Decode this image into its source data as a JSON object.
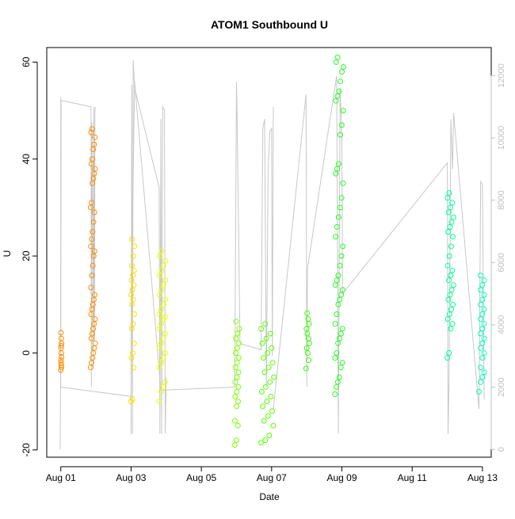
{
  "chart_data": {
    "type": "scatter",
    "title": "ATOM1 Southbound U",
    "xlabel": "Date",
    "ylabel": "U",
    "x_ticks": [
      {
        "label": "Aug 01",
        "value": 1
      },
      {
        "label": "Aug 03",
        "value": 3
      },
      {
        "label": "Aug 05",
        "value": 5
      },
      {
        "label": "Aug 07",
        "value": 7
      },
      {
        "label": "Aug 09",
        "value": 9
      },
      {
        "label": "Aug 11",
        "value": 11
      },
      {
        "label": "Aug 13",
        "value": 13
      }
    ],
    "xlim": [
      0.6,
      13.25
    ],
    "ylim": [
      -21.5,
      63
    ],
    "y_ticks": [
      {
        "label": "-20",
        "value": -20
      },
      {
        "label": "0",
        "value": 0
      },
      {
        "label": "20",
        "value": 20
      },
      {
        "label": "40",
        "value": 40
      },
      {
        "label": "60",
        "value": 60
      }
    ],
    "y2_range": [
      -250,
      12900
    ],
    "y2_ticks": [
      {
        "label": "0",
        "value": 0
      },
      {
        "label": "2000",
        "value": 2000
      },
      {
        "label": "4000",
        "value": 4000
      },
      {
        "label": "6000",
        "value": 6000
      },
      {
        "label": "8000",
        "value": 8000
      },
      {
        "label": "10000",
        "value": 10000
      },
      {
        "label": "12000",
        "value": 12000
      }
    ],
    "grid": false,
    "legend": "none",
    "line_color": "#c8c8c8",
    "axis_color": "#000000",
    "secondary_axis_color": "#c0c0c0",
    "point_groups": [
      {
        "date": "Aug 01",
        "x_range": [
          1.0,
          1.02
        ],
        "y": [
          -3.5,
          -2.5,
          -1.5,
          -0.8,
          0,
          1,
          2,
          3,
          4.2,
          -3,
          1.5,
          -2
        ],
        "color": "#ff8c00"
      },
      {
        "date": "Aug 01 (late)",
        "x_range": [
          1.85,
          1.98
        ],
        "y": [
          -3,
          -2,
          -1,
          0,
          1,
          2,
          3,
          4,
          5,
          6,
          7,
          8,
          9,
          10,
          11,
          12,
          13.5,
          16,
          18,
          20,
          21,
          22,
          23.5,
          25,
          27,
          29,
          30,
          31,
          35,
          36,
          37,
          38,
          39,
          40,
          42,
          43,
          44.5,
          45.5,
          46.2
        ],
        "color": "#ff8c00"
      },
      {
        "date": "Aug 03",
        "x_range": [
          3.0,
          3.1
        ],
        "y": [
          -10,
          -9.5,
          -3,
          -1,
          0,
          2,
          5,
          6,
          8,
          10,
          11,
          12,
          13,
          14,
          15,
          16,
          17,
          18,
          20,
          22,
          23.5
        ],
        "color": "#ffe000"
      },
      {
        "date": "Aug 03 (late)",
        "x_range": [
          3.8,
          4.02
        ],
        "y": [
          -10,
          -8,
          -7,
          -6,
          -3,
          -2,
          -1,
          0,
          1,
          2,
          3,
          4,
          5,
          6,
          7,
          7.5,
          8,
          9,
          10,
          11,
          12,
          13,
          14,
          15,
          16,
          17,
          18,
          19,
          20,
          21
        ],
        "color": "#f0ff00"
      },
      {
        "date": "Aug 06",
        "x_range": [
          5.95,
          6.08
        ],
        "y": [
          -19,
          -18,
          -15,
          -14,
          -11,
          -10,
          -9,
          -8,
          -7,
          -6,
          -5,
          -4,
          -3,
          -2,
          -1,
          0,
          1,
          2,
          3,
          4,
          5,
          6.5
        ],
        "color": "#7dff00"
      },
      {
        "date": "Aug 06 (late)",
        "x_range": [
          6.7,
          7.08
        ],
        "y": [
          -18.5,
          -18,
          -17,
          -15,
          -14,
          -13,
          -12,
          -11,
          -10,
          -9,
          -8,
          -7,
          -6,
          -5,
          -4,
          -3,
          -2,
          -1,
          0,
          1,
          2,
          3,
          4,
          5,
          6
        ],
        "color": "#55ff00"
      },
      {
        "date": "Aug 08",
        "x_range": [
          7.98,
          8.08
        ],
        "y": [
          -3.2,
          -1.5,
          0,
          1,
          2,
          3,
          4,
          5,
          6,
          7,
          8.2
        ],
        "color": "#33ff00"
      },
      {
        "date": "Aug 08 (late)",
        "x_range": [
          8.8,
          9.05
        ],
        "y": [
          -8.5,
          -7,
          -6,
          -5,
          -3,
          -2,
          -1,
          0,
          2,
          3,
          4,
          5,
          6,
          8,
          10,
          11,
          12,
          13,
          14,
          15,
          16,
          18,
          20,
          22,
          24,
          26,
          28,
          30,
          32,
          35,
          37,
          38,
          39,
          45,
          47,
          50,
          52,
          53,
          54,
          56,
          58,
          59,
          60,
          61
        ],
        "color": "#22ff22"
      },
      {
        "date": "Aug 12",
        "x_range": [
          12.0,
          12.18
        ],
        "y": [
          -1,
          0,
          5,
          6,
          7,
          8,
          9,
          10,
          11,
          12,
          13,
          14,
          15,
          16,
          17,
          18,
          20,
          22,
          24,
          25,
          26,
          27,
          28,
          29,
          30,
          31,
          32,
          33
        ],
        "color": "#00ff99"
      },
      {
        "date": "Aug 12 (late)",
        "x_range": [
          12.9,
          13.05
        ],
        "y": [
          -8,
          -6,
          -5,
          -4,
          -3,
          -1,
          0,
          1,
          2,
          3,
          4,
          5,
          6,
          7,
          8,
          9,
          10,
          11,
          12,
          13,
          14,
          15,
          16
        ],
        "color": "#00ffc0"
      }
    ],
    "line_series": [
      {
        "x": [
          0.98,
          1.0,
          1.01,
          1.02,
          1.86,
          1.87,
          1.88,
          1.9,
          1.92,
          1.94,
          1.96,
          1.97,
          1.98
        ],
        "y": [
          0,
          2900,
          11200,
          11200,
          11000,
          2000,
          10500,
          8000,
          2600,
          11000,
          3500,
          10800,
          11000
        ]
      },
      {
        "x": [
          3.0,
          3.02,
          3.04,
          3.06,
          3.1,
          3.8,
          3.82,
          3.85,
          3.87,
          3.9,
          3.95,
          3.97,
          4.0
        ],
        "y": [
          500,
          11700,
          500,
          12500,
          11600,
          8400,
          500,
          10600,
          500,
          11000,
          10900,
          500,
          2300
        ]
      },
      {
        "x": [
          1.0,
          1.0,
          3.0,
          3.0,
          3.1,
          3.85,
          5.95,
          6.0,
          6.02,
          6.1,
          6.7,
          6.75,
          6.8,
          6.85,
          6.9,
          6.95,
          7.0,
          7.02,
          7.05
        ],
        "y": [
          11300,
          2000,
          1700,
          4000,
          11800,
          1900,
          2000,
          11800,
          10500,
          3400,
          3200,
          10300,
          10600,
          2000,
          9000,
          10200,
          10300,
          3000,
          11000
        ]
      },
      {
        "x": [
          7.05,
          7.98,
          8.0,
          8.02,
          8.85,
          8.9,
          8.95,
          9.0,
          9.02,
          12.0,
          12.02,
          12.05,
          12.1,
          12.15,
          12.18,
          12.9,
          12.95,
          13.0,
          13.05
        ],
        "y": [
          1300,
          11400,
          2000,
          5800,
          12000,
          500,
          11600,
          10000,
          5000,
          9200,
          500,
          2200,
          10600,
          9000,
          10800,
          1300,
          8600,
          8500,
          1600
        ]
      }
    ]
  }
}
